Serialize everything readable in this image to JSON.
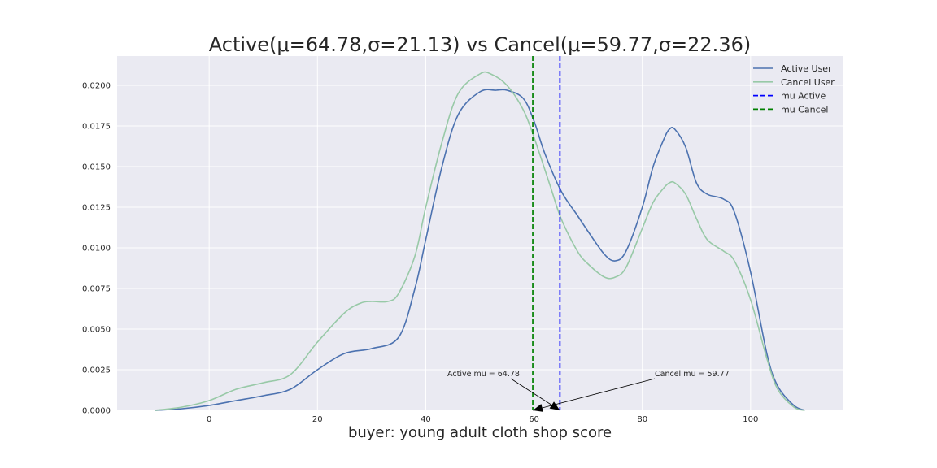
{
  "chart_data": {
    "type": "line",
    "title": "Active(μ=64.78,σ=21.13) vs Cancel(μ=59.77,σ=22.36)",
    "xlabel": "buyer: young adult cloth shop score",
    "ylabel": "",
    "xlim": [
      -17,
      117
    ],
    "ylim": [
      0,
      0.0218
    ],
    "xticks": [
      0,
      20,
      40,
      60,
      80,
      100
    ],
    "yticks": [
      0.0,
      0.0025,
      0.005,
      0.0075,
      0.01,
      0.0125,
      0.015,
      0.0175,
      0.02
    ],
    "xtick_labels": [
      "0",
      "20",
      "40",
      "60",
      "80",
      "100"
    ],
    "ytick_labels": [
      "0.0000",
      "0.0025",
      "0.0050",
      "0.0075",
      "0.0100",
      "0.0125",
      "0.0150",
      "0.0175",
      "0.0200"
    ],
    "grid": true,
    "legend_position": "top-right",
    "series": [
      {
        "name": "Active User",
        "color": "#4c72b0",
        "style": "solid",
        "x": [
          -10,
          -5,
          0,
          5,
          10,
          15,
          20,
          25,
          30,
          35,
          38,
          40,
          43,
          46,
          50,
          53,
          55,
          58,
          60,
          62,
          65,
          68,
          70,
          73,
          75,
          77,
          80,
          82,
          84,
          85,
          86,
          88,
          90,
          92,
          95,
          97,
          100,
          103,
          105,
          108,
          110
        ],
        "y": [
          0.0,
          0.0001,
          0.0003,
          0.0006,
          0.0009,
          0.0013,
          0.0025,
          0.0035,
          0.0038,
          0.0045,
          0.0075,
          0.0105,
          0.015,
          0.0182,
          0.0196,
          0.0197,
          0.0197,
          0.0192,
          0.0178,
          0.0158,
          0.0135,
          0.012,
          0.011,
          0.0096,
          0.0092,
          0.0098,
          0.0125,
          0.015,
          0.0167,
          0.0173,
          0.0173,
          0.0162,
          0.014,
          0.0133,
          0.013,
          0.0122,
          0.0085,
          0.0035,
          0.0015,
          0.0003,
          0.0
        ]
      },
      {
        "name": "Cancel User",
        "color": "#98c9a7",
        "style": "solid",
        "x": [
          -10,
          -5,
          0,
          5,
          10,
          15,
          20,
          25,
          28,
          30,
          33,
          35,
          38,
          40,
          43,
          46,
          50,
          52,
          55,
          58,
          60,
          63,
          65,
          68,
          70,
          73,
          75,
          77,
          80,
          82,
          84,
          85,
          86,
          88,
          90,
          92,
          95,
          97,
          100,
          103,
          105,
          108,
          110
        ],
        "y": [
          0.0,
          0.0002,
          0.0006,
          0.0013,
          0.0017,
          0.0022,
          0.0042,
          0.006,
          0.0066,
          0.0067,
          0.0067,
          0.0072,
          0.0095,
          0.0125,
          0.0165,
          0.0195,
          0.0207,
          0.0207,
          0.02,
          0.0185,
          0.0168,
          0.0138,
          0.0118,
          0.0098,
          0.009,
          0.0082,
          0.0082,
          0.0088,
          0.0112,
          0.0128,
          0.0137,
          0.014,
          0.014,
          0.0133,
          0.0118,
          0.0105,
          0.0098,
          0.0092,
          0.0068,
          0.0032,
          0.0013,
          0.0002,
          0.0
        ]
      }
    ],
    "vlines": [
      {
        "name": "mu Active",
        "x": 64.78,
        "color": "#0000ff",
        "style": "dashed"
      },
      {
        "name": "mu Cancel",
        "x": 59.77,
        "color": "#008000",
        "style": "dashed"
      }
    ],
    "annotations": [
      {
        "text": "Active mu = 64.78",
        "text_x": 44,
        "text_y": 0.0021,
        "target_x": 64.78,
        "target_y": 0.0
      },
      {
        "text": "Cancel mu = 59.77",
        "text_x": 82.3,
        "text_y": 0.0021,
        "target_x": 59.77,
        "target_y": 0.0
      }
    ],
    "colors": {
      "plot_background": "#eaeaf2",
      "grid": "#ffffff",
      "text": "#262626"
    }
  }
}
